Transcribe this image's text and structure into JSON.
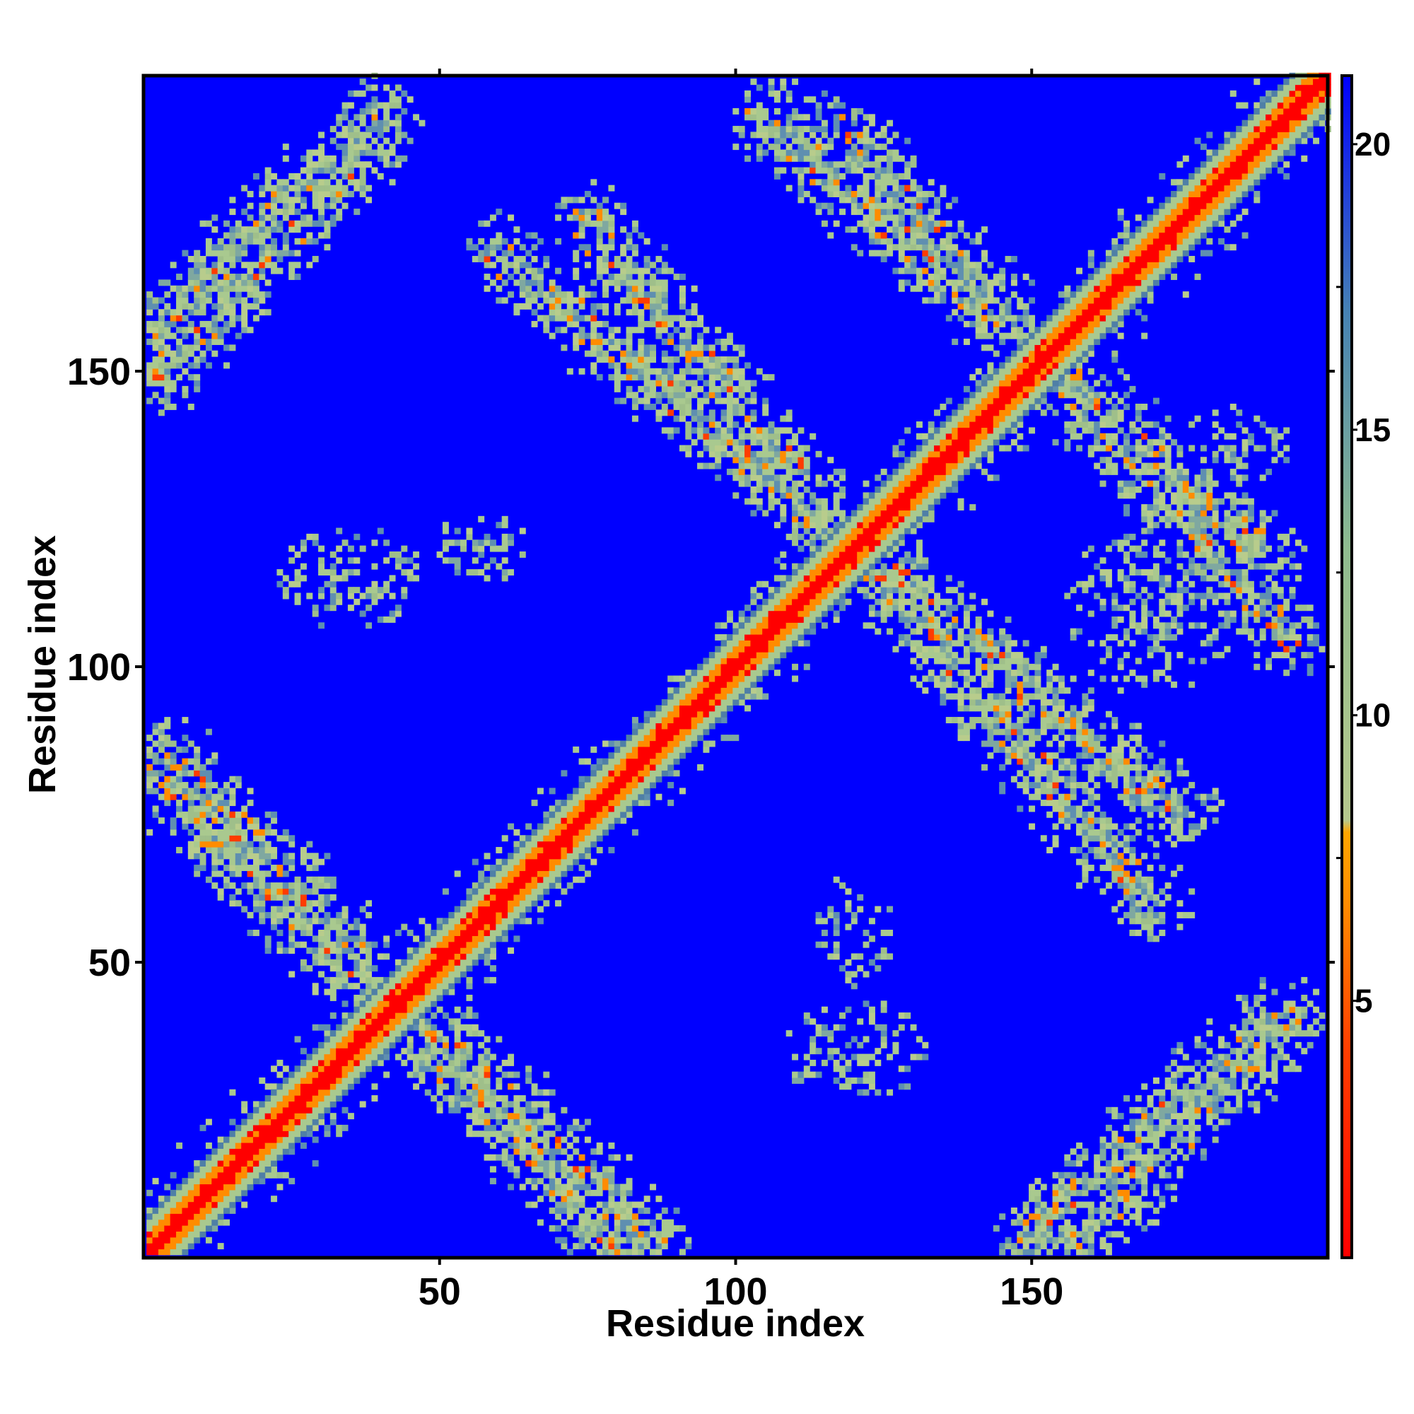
{
  "chart_data": {
    "type": "heatmap",
    "title": "",
    "xlabel": "Residue index",
    "ylabel": "Residue index",
    "n_residues": 200,
    "xlim": [
      1,
      200
    ],
    "ylim": [
      1,
      200
    ],
    "x_ticks": [
      50,
      100,
      150
    ],
    "y_ticks": [
      50,
      100,
      150
    ],
    "colorbar": {
      "ticks": [
        5,
        10,
        15,
        20
      ],
      "range": [
        0.5,
        21.2
      ],
      "colors": [
        "#ff0000",
        "#ff8c00",
        "#8fbc8f",
        "#4682b4",
        "#0000ff"
      ]
    },
    "diagonal": {
      "core_color": "#ff0000",
      "inner_color": "#ff8c00",
      "outer_color": "#a9c98f",
      "halo_color": "#4f7fa6"
    },
    "background_color": "#0000ff",
    "contact_bands": [
      {
        "name": "b1",
        "from": [
          3,
          158
        ],
        "to": [
          40,
          193
        ],
        "width": 8
      },
      {
        "name": "b2",
        "from": [
          3,
          80
        ],
        "to": [
          85,
          3
        ],
        "width": 9
      },
      {
        "name": "b3",
        "from": [
          60,
          170
        ],
        "to": [
          175,
          75
        ],
        "width": 8
      },
      {
        "name": "b4",
        "from": [
          105,
          193
        ],
        "to": [
          190,
          118
        ],
        "width": 8
      },
      {
        "name": "b5",
        "from": [
          150,
          3
        ],
        "to": [
          190,
          40
        ],
        "width": 8
      }
    ],
    "contact_patches": [
      {
        "name": "p1",
        "center": [
          35,
          115
        ],
        "size": [
          25,
          18
        ]
      },
      {
        "name": "p2",
        "center": [
          57,
          120
        ],
        "size": [
          18,
          12
        ]
      },
      {
        "name": "p3",
        "center": [
          120,
          55
        ],
        "size": [
          14,
          20
        ]
      },
      {
        "name": "p4",
        "center": [
          120,
          35
        ],
        "size": [
          25,
          18
        ]
      },
      {
        "name": "p5",
        "center": [
          170,
          110
        ],
        "size": [
          30,
          30
        ]
      },
      {
        "name": "p6",
        "center": [
          185,
          138
        ],
        "size": [
          18,
          14
        ]
      }
    ]
  }
}
